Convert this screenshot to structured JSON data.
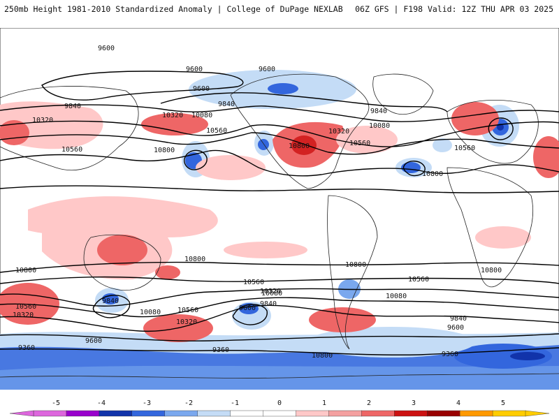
{
  "header": {
    "left_title": "250mb Height 1981-2010 Standardized Anomaly | College of DuPage NEXLAB",
    "right_title": "06Z GFS | F198 Valid: 12Z THU APR 03 2025"
  },
  "contour_labels": {
    "c1": "9600",
    "c2": "9600",
    "c3": "9600",
    "c4": "9600",
    "c5": "9840",
    "c6": "9840",
    "c7": "9840",
    "c8": "10320",
    "c9": "10080",
    "c10": "10320",
    "c11": "10080",
    "c12": "10320",
    "c13": "10560",
    "c14": "10560",
    "c15": "10560",
    "c16": "10800",
    "c17": "10800",
    "c18": "10560",
    "c19": "10800",
    "c20": "10800",
    "c21": "10800",
    "c22": "10800",
    "c23": "10800",
    "c24": "10560",
    "c25": "10320",
    "c26": "9840",
    "c27": "10080",
    "c28": "10560",
    "c29": "10320",
    "c30": "9600",
    "c31": "10080",
    "c32": "9840",
    "c33": "10560",
    "c34": "10320",
    "c35": "10080",
    "c36": "9840",
    "c37": "9600",
    "c38": "9360",
    "c39": "9360",
    "c40": "9600",
    "c41": "9360",
    "c42": "10560",
    "c43": "10800"
  },
  "colorbar": {
    "ticks": [
      "-5",
      "-4",
      "-3",
      "-2",
      "-1",
      "0",
      "1",
      "2",
      "3",
      "4",
      "5"
    ],
    "colors": [
      "#dd66dd",
      "#9900cc",
      "#1133aa",
      "#3366dd",
      "#7aa8ee",
      "#c4dcf6",
      "#ffffff",
      "#ffffff",
      "#ffc8c8",
      "#f4a0a0",
      "#ee6666",
      "#cc1111",
      "#990000",
      "#ff9900",
      "#ffcc00"
    ]
  }
}
